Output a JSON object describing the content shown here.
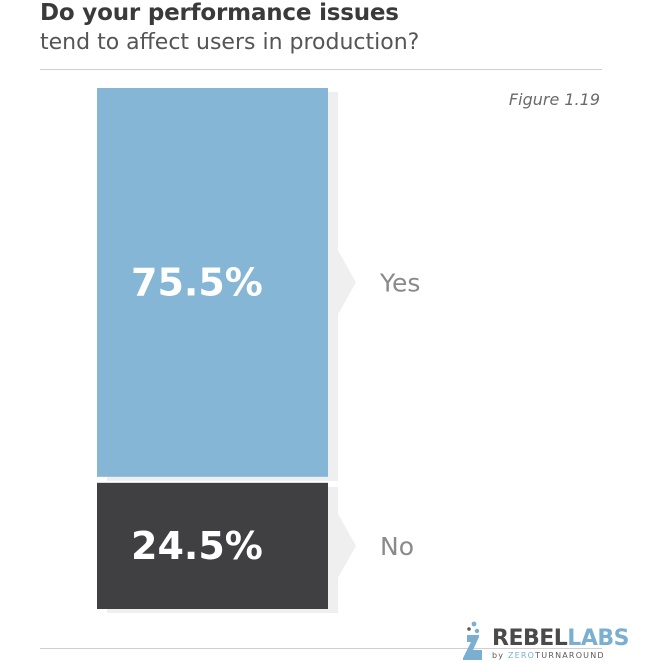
{
  "header": {
    "title_bold": "Do your performance issues",
    "title_light": "tend to affect users in production?"
  },
  "figure_label": "Figure 1.19",
  "chart_data": {
    "type": "bar",
    "stacked": true,
    "orientation": "vertical",
    "categories": [
      "Yes",
      "No"
    ],
    "values": [
      75.5,
      24.5
    ],
    "value_labels": [
      "75.5%",
      "24.5%"
    ],
    "colors": [
      "#85b6d6",
      "#404042"
    ],
    "unit": "%",
    "title": "Do your performance issues tend to affect users in production?",
    "grid": false,
    "legend": "none"
  },
  "logo": {
    "main_a": "REBEL",
    "main_b": "LABS",
    "by": "by ",
    "sub_a": "ZERO",
    "sub_b": "TURNAROUND",
    "icon": "flask-icon"
  }
}
